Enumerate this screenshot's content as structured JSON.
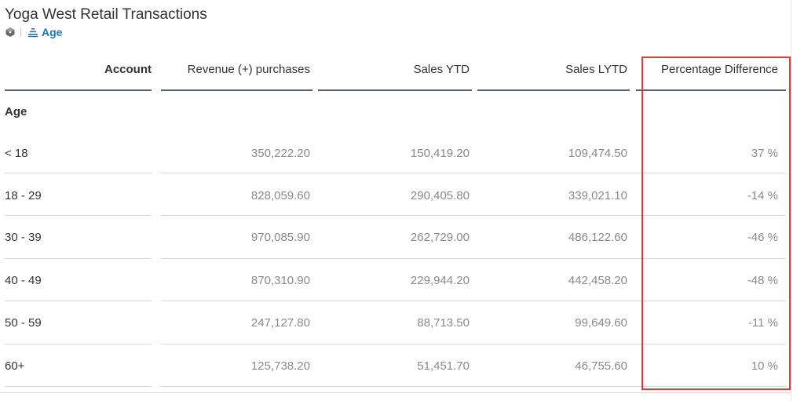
{
  "widget": {
    "title": "Yoga West Retail Transactions",
    "model_icon": "model-cube-icon",
    "dimension_icon": "hierarchy-icon",
    "dimension_label": "Age"
  },
  "table": {
    "columns": [
      "Account",
      "Revenue (+) purchases",
      "Sales YTD",
      "Sales LYTD",
      "Percentage Difference"
    ],
    "section_label": "Age",
    "rows": [
      {
        "label": "< 18",
        "revenue": "350,222.20",
        "sales_ytd": "150,419.20",
        "sales_lytd": "109,474.50",
        "pct_diff": "37 %"
      },
      {
        "label": "18 - 29",
        "revenue": "828,059.60",
        "sales_ytd": "290,405.80",
        "sales_lytd": "339,021.10",
        "pct_diff": "-14 %"
      },
      {
        "label": "30 - 39",
        "revenue": "970,085.90",
        "sales_ytd": "262,729.00",
        "sales_lytd": "486,122.60",
        "pct_diff": "-46 %"
      },
      {
        "label": "40 - 49",
        "revenue": "870,310.90",
        "sales_ytd": "229,944.20",
        "sales_lytd": "442,458.20",
        "pct_diff": "-48 %"
      },
      {
        "label": "50 - 59",
        "revenue": "247,127.80",
        "sales_ytd": "88,713.50",
        "sales_lytd": "99,649.60",
        "pct_diff": "-11 %"
      },
      {
        "label": "60+",
        "revenue": "125,738.20",
        "sales_ytd": "51,451.70",
        "sales_lytd": "46,755.60",
        "pct_diff": "10 %"
      }
    ]
  },
  "colors": {
    "accent": "#1e73b3",
    "highlight": "#e03c3c",
    "header_rule": "#5a6170",
    "value_text": "#8a8a8a"
  }
}
